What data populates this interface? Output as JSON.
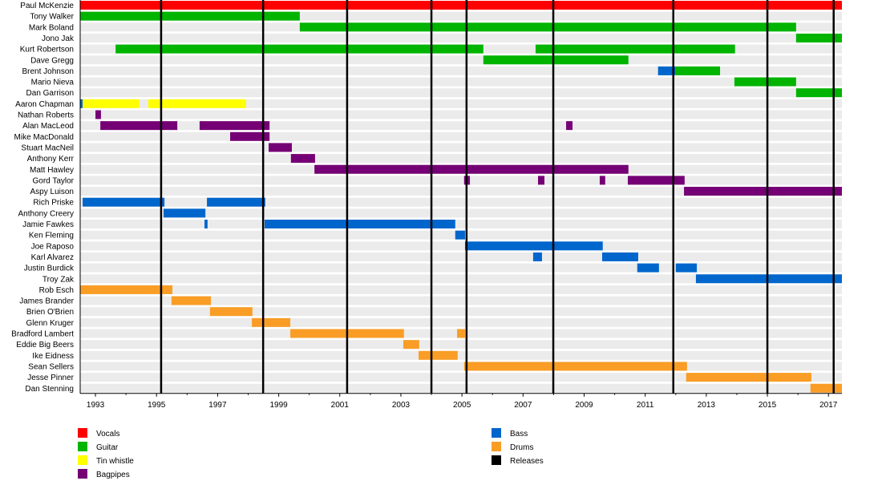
{
  "chart_data": {
    "type": "timeline",
    "title": "",
    "xlim": [
      1992.5,
      2017.44
    ],
    "x_tick_labels": [
      "1993",
      "1995",
      "1997",
      "1999",
      "2001",
      "2003",
      "2005",
      "2007",
      "2009",
      "2011",
      "2013",
      "2015",
      "2017"
    ],
    "grid": false,
    "legend_placement": "bottom",
    "roles": [
      {
        "key": "vocals",
        "name": "Vocals",
        "color": "#ff0000"
      },
      {
        "key": "guitar",
        "name": "Guitar",
        "color": "#00b400"
      },
      {
        "key": "tin",
        "name": "Tin whistle",
        "color": "#ffff00"
      },
      {
        "key": "bagpipes",
        "name": "Bagpipes",
        "color": "#750075"
      },
      {
        "key": "bass",
        "name": "Bass",
        "color": "#0066cc"
      },
      {
        "key": "drums",
        "name": "Drums",
        "color": "#f99d26"
      },
      {
        "key": "releases",
        "name": "Releases",
        "color": "#000000"
      }
    ],
    "releases": [
      1995.15,
      1998.49,
      2001.24,
      2004.0,
      2005.15,
      2007.99,
      2011.92,
      2015.0,
      2017.17
    ],
    "members": [
      {
        "name": "Paul McKenzie",
        "spans": [
          [
            "vocals",
            1992.5,
            2017.44
          ]
        ]
      },
      {
        "name": "Tony Walker",
        "spans": [
          [
            "guitar",
            1992.5,
            1999.69
          ]
        ]
      },
      {
        "name": "Mark Boland",
        "spans": [
          [
            "guitar",
            1999.69,
            2015.94
          ]
        ]
      },
      {
        "name": "Jono Jak",
        "spans": [
          [
            "guitar",
            2015.94,
            2017.44
          ]
        ]
      },
      {
        "name": "Kurt Robertson",
        "spans": [
          [
            "guitar",
            1993.66,
            2005.7
          ],
          [
            "guitar",
            2007.41,
            2013.94
          ]
        ]
      },
      {
        "name": "Dave Gregg",
        "spans": [
          [
            "guitar",
            2005.7,
            2010.45
          ]
        ]
      },
      {
        "name": "Brent Johnson",
        "spans": [
          [
            "bass",
            2011.42,
            2011.98
          ],
          [
            "guitar",
            2011.98,
            2013.45
          ]
        ]
      },
      {
        "name": "Mario Nieva",
        "spans": [
          [
            "guitar",
            2013.92,
            2015.94
          ]
        ]
      },
      {
        "name": "Dan Garrison",
        "spans": [
          [
            "guitar",
            2015.94,
            2017.44
          ]
        ]
      },
      {
        "name": "Aaron Chapman",
        "spans": [
          [
            "bass",
            1992.5,
            1992.58
          ],
          [
            "tin",
            1992.58,
            1994.44
          ],
          [
            "tin",
            1994.73,
            1997.93
          ]
        ]
      },
      {
        "name": "Nathan Roberts",
        "spans": [
          [
            "bagpipes",
            1993.0,
            1993.18
          ]
        ]
      },
      {
        "name": "Alan MacLeod",
        "spans": [
          [
            "bagpipes",
            1993.16,
            1995.68
          ],
          [
            "bagpipes",
            1996.41,
            1998.7
          ],
          [
            "bagpipes",
            2008.41,
            2008.62
          ]
        ]
      },
      {
        "name": "Mike MacDonald",
        "spans": [
          [
            "bagpipes",
            1997.41,
            1998.7
          ]
        ]
      },
      {
        "name": "Stuart MacNeil",
        "spans": [
          [
            "bagpipes",
            1998.67,
            1999.43
          ]
        ]
      },
      {
        "name": "Anthony Kerr",
        "spans": [
          [
            "bagpipes",
            1999.4,
            2000.19
          ]
        ]
      },
      {
        "name": "Matt Hawley",
        "spans": [
          [
            "bagpipes",
            2000.17,
            2010.45
          ]
        ]
      },
      {
        "name": "Gord Taylor",
        "spans": [
          [
            "bagpipes",
            2005.07,
            2005.26
          ],
          [
            "bagpipes",
            2007.49,
            2007.7
          ],
          [
            "bagpipes",
            2009.51,
            2009.69
          ],
          [
            "bagpipes",
            2010.43,
            2012.29
          ]
        ]
      },
      {
        "name": "Aspy Luison",
        "spans": [
          [
            "bagpipes",
            2012.27,
            2017.44
          ]
        ]
      },
      {
        "name": "Rich Priske",
        "spans": [
          [
            "bass",
            1992.58,
            1995.26
          ],
          [
            "bass",
            1996.65,
            1998.56
          ]
        ]
      },
      {
        "name": "Anthony Creery",
        "spans": [
          [
            "bass",
            1995.23,
            1996.6
          ]
        ]
      },
      {
        "name": "Jamie Fawkes",
        "spans": [
          [
            "bass",
            1996.57,
            1996.67
          ],
          [
            "bass",
            1998.54,
            2004.78
          ]
        ]
      },
      {
        "name": "Ken Fleming",
        "spans": [
          [
            "bass",
            2004.78,
            2005.1
          ]
        ]
      },
      {
        "name": "Joe Raposo",
        "spans": [
          [
            "bass",
            2005.1,
            2009.61
          ]
        ]
      },
      {
        "name": "Karl Alvarez",
        "spans": [
          [
            "bass",
            2007.33,
            2007.62
          ],
          [
            "bass",
            2009.59,
            2010.77
          ]
        ]
      },
      {
        "name": "Justin Burdick",
        "spans": [
          [
            "bass",
            2010.74,
            2011.45
          ],
          [
            "bass",
            2012.0,
            2012.69
          ]
        ]
      },
      {
        "name": "Troy Zak",
        "spans": [
          [
            "bass",
            2012.66,
            2017.44
          ]
        ]
      },
      {
        "name": "Rob Esch",
        "spans": [
          [
            "drums",
            1992.5,
            1995.52
          ]
        ]
      },
      {
        "name": "James Brander",
        "spans": [
          [
            "drums",
            1995.49,
            1996.78
          ]
        ]
      },
      {
        "name": "Brien O'Brien",
        "spans": [
          [
            "drums",
            1996.75,
            1998.14
          ]
        ]
      },
      {
        "name": "Glenn Kruger",
        "spans": [
          [
            "drums",
            1998.12,
            1999.38
          ]
        ]
      },
      {
        "name": "Bradford Lambert",
        "spans": [
          [
            "drums",
            1999.38,
            2003.1
          ],
          [
            "drums",
            2004.84,
            2005.1
          ]
        ]
      },
      {
        "name": "Eddie Big Beers",
        "spans": [
          [
            "drums",
            2003.08,
            2003.6
          ]
        ]
      },
      {
        "name": "Ike Eidness",
        "spans": [
          [
            "drums",
            2003.58,
            2004.86
          ]
        ]
      },
      {
        "name": "Sean Sellers",
        "spans": [
          [
            "drums",
            2005.07,
            2012.37
          ]
        ]
      },
      {
        "name": "Jesse Pinner",
        "spans": [
          [
            "drums",
            2012.34,
            2016.44
          ]
        ]
      },
      {
        "name": "Dan Stenning",
        "spans": [
          [
            "drums",
            2016.41,
            2017.44
          ]
        ]
      }
    ]
  }
}
